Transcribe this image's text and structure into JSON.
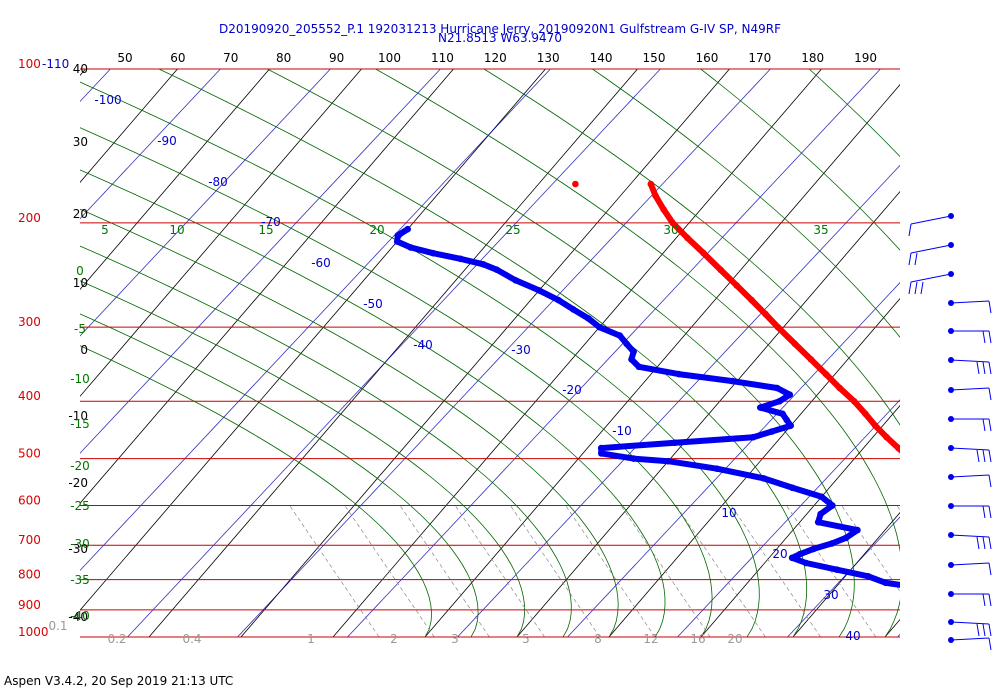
{
  "title": {
    "line1": "D20190920_205552_P.1 192031213 Hurricane Jerry, 20190920N1 Gulfstream G-IV SP, N49RF",
    "line2": "N21.8513 W63.9470"
  },
  "footer": "Aspen V3.4.2, 20 Sep 2019  21:13 UTC",
  "colors": {
    "temperature": "#ff0000",
    "dewpoint": "#0000ee",
    "isobar": "#cc0000",
    "isotherm": "#000000",
    "dry_adiabat": "#0000aa",
    "moist_adiabat": "#006600",
    "mixing_ratio": "#888888",
    "wind_barb": "#0000ee"
  },
  "chart_data": {
    "type": "skew-t log-p",
    "pressure_labels": [
      "100-110",
      "200",
      "300",
      "400",
      "500",
      "600",
      "700",
      "800",
      "900",
      "1000"
    ],
    "pressure_levels": [
      110,
      200,
      300,
      400,
      500,
      600,
      700,
      800,
      900,
      1000
    ],
    "top_axis_labels": [
      "50",
      "60",
      "70",
      "80",
      "90",
      "100",
      "110",
      "120",
      "130",
      "140",
      "150",
      "160",
      "170",
      "180",
      "190"
    ],
    "left_altitude_labels": [
      "40",
      "30",
      "20",
      "10",
      "0",
      "-10",
      "-20",
      "-30",
      "-40"
    ],
    "dry_adiabat_labels": [
      "-100",
      "-90",
      "-80",
      "-70",
      "-60",
      "-50",
      "-40",
      "-30",
      "-20",
      "-10",
      "10",
      "20",
      "30",
      "40"
    ],
    "moist_adiabat_labels_top": [
      "5",
      "10",
      "15",
      "20",
      "25",
      "30",
      "35"
    ],
    "moist_adiabat_labels_left": [
      "0",
      "-5",
      "-10",
      "-15",
      "-20",
      "-25",
      "-30",
      "-35",
      "-40"
    ],
    "mixing_ratio_labels": [
      "0.1",
      "0.2",
      "0.4",
      "1",
      "2",
      "3",
      "5",
      "8",
      "12",
      "16",
      "20"
    ],
    "temperature_profile": [
      [
        1000,
        27.0
      ],
      [
        985,
        26.2
      ],
      [
        970,
        25.2
      ],
      [
        950,
        23.8
      ],
      [
        925,
        22.5
      ],
      [
        900,
        21.5
      ],
      [
        875,
        21.2
      ],
      [
        850,
        20.0
      ],
      [
        825,
        18.8
      ],
      [
        800,
        17.8
      ],
      [
        775,
        16.8
      ],
      [
        750,
        15.5
      ],
      [
        725,
        14.0
      ],
      [
        700,
        12.5
      ],
      [
        680,
        11.5
      ],
      [
        660,
        10.0
      ],
      [
        640,
        8.4
      ],
      [
        620,
        6.7
      ],
      [
        600,
        5.0
      ],
      [
        580,
        3.3
      ],
      [
        560,
        1.6
      ],
      [
        540,
        -0.2
      ],
      [
        520,
        -2.0
      ],
      [
        500,
        -4.0
      ],
      [
        480,
        -6.2
      ],
      [
        460,
        -8.5
      ],
      [
        440,
        -10.8
      ],
      [
        420,
        -13.0
      ],
      [
        400,
        -15.4
      ],
      [
        380,
        -18.2
      ],
      [
        360,
        -21.0
      ],
      [
        340,
        -24.0
      ],
      [
        320,
        -27.2
      ],
      [
        300,
        -30.6
      ],
      [
        285,
        -33.2
      ],
      [
        270,
        -36.0
      ],
      [
        255,
        -39.0
      ],
      [
        240,
        -42.2
      ],
      [
        225,
        -45.6
      ],
      [
        212,
        -48.8
      ],
      [
        200,
        -51.8
      ],
      [
        190,
        -54.0
      ],
      [
        180,
        -56.2
      ],
      [
        172,
        -57.8
      ]
    ],
    "dewpoint_profile": [
      [
        1000,
        19.8
      ],
      [
        985,
        19.5
      ],
      [
        970,
        19.0
      ],
      [
        950,
        18.0
      ],
      [
        925,
        16.5
      ],
      [
        900,
        15.5
      ],
      [
        875,
        13.0
      ],
      [
        850,
        12.0
      ],
      [
        825,
        9.0
      ],
      [
        810,
        5.0
      ],
      [
        790,
        2.5
      ],
      [
        770,
        -1.5
      ],
      [
        750,
        -5.5
      ],
      [
        735,
        -7.5
      ],
      [
        725,
        -7.0
      ],
      [
        710,
        -6.0
      ],
      [
        695,
        -4.5
      ],
      [
        680,
        -3.5
      ],
      [
        660,
        -3.0
      ],
      [
        640,
        -8.0
      ],
      [
        620,
        -8.5
      ],
      [
        600,
        -8.0
      ],
      [
        580,
        -10.0
      ],
      [
        560,
        -14.0
      ],
      [
        540,
        -18.0
      ],
      [
        520,
        -24.0
      ],
      [
        505,
        -30.0
      ],
      [
        500,
        -34.0
      ],
      [
        490,
        -38.0
      ],
      [
        480,
        -38.5
      ],
      [
        470,
        -31.0
      ],
      [
        460,
        -23.0
      ],
      [
        450,
        -21.5
      ],
      [
        440,
        -20.0
      ],
      [
        430,
        -21.0
      ],
      [
        420,
        -22.0
      ],
      [
        410,
        -25.0
      ],
      [
        400,
        -23.5
      ],
      [
        390,
        -23.0
      ],
      [
        380,
        -25.0
      ],
      [
        370,
        -30.5
      ],
      [
        360,
        -37.0
      ],
      [
        350,
        -42.0
      ],
      [
        340,
        -43.5
      ],
      [
        330,
        -44.0
      ],
      [
        320,
        -45.5
      ],
      [
        310,
        -47.0
      ],
      [
        300,
        -50.0
      ],
      [
        290,
        -52.0
      ],
      [
        280,
        -54.5
      ],
      [
        270,
        -57.0
      ],
      [
        260,
        -60.0
      ],
      [
        250,
        -63.5
      ],
      [
        240,
        -66.5
      ],
      [
        235,
        -68.5
      ],
      [
        230,
        -71.5
      ],
      [
        225,
        -75.0
      ],
      [
        220,
        -78.0
      ],
      [
        215,
        -80.0
      ],
      [
        210,
        -80.5
      ],
      [
        205,
        -80.0
      ]
    ],
    "isolated_temperature_point": [
      172,
      -66.0
    ],
    "wind_barb_levels": [
      175,
      200,
      225,
      250,
      300,
      350,
      400,
      450,
      500,
      550,
      600,
      650,
      700,
      750,
      800,
      850,
      900,
      950,
      1000
    ]
  }
}
